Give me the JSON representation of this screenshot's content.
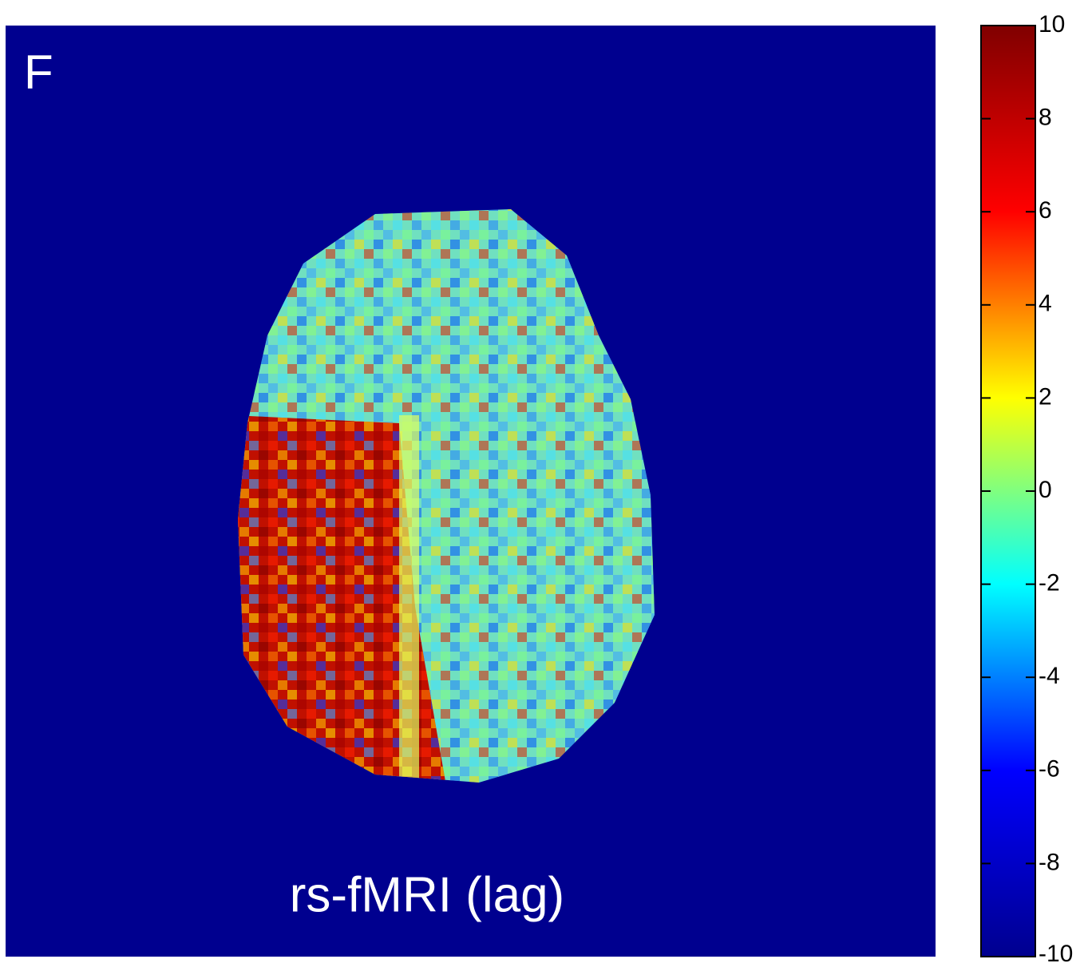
{
  "panel_label": "F",
  "caption": "rs-fMRI (lag)",
  "colorbar": {
    "lim": [
      -10,
      10
    ],
    "ticks": [
      -10,
      -8,
      -6,
      -4,
      -2,
      0,
      2,
      4,
      6,
      8,
      10
    ],
    "colormap": [
      "#00008f",
      "#0000ff",
      "#00ffff",
      "#ffff00",
      "#ff0000",
      "#800000"
    ]
  }
}
